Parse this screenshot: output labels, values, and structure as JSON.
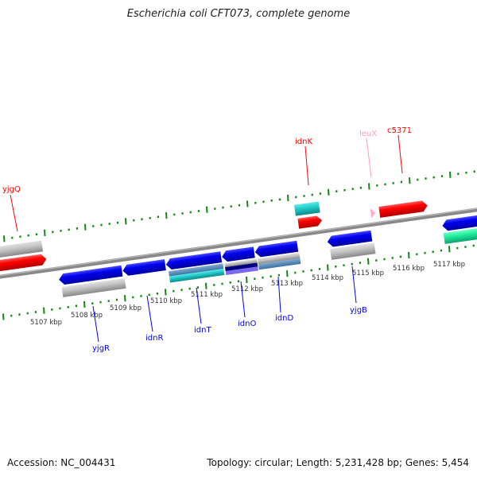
{
  "title": "Escherichia coli CFT073, complete genome",
  "footer": {
    "accession": "Accession: NC_004431",
    "summary": "Topology: circular; Length: 5,231,428 bp; Genes: 5,454"
  },
  "scale_labels": [
    "5107 kbp",
    "5108 kbp",
    "5109 kbp",
    "5110 kbp",
    "5111 kbp",
    "5112 kbp",
    "5113 kbp",
    "5114 kbp",
    "5115 kbp",
    "5116 kbp",
    "5117 kbp"
  ],
  "gene_labels": {
    "yjgQ": "yjgQ",
    "idnK": "idnK",
    "leuX": "leuX",
    "c5371": "c5371",
    "yjgR": "yjgR",
    "idnR": "idnR",
    "idnT": "idnT",
    "idnO": "idnO",
    "idnD": "idnD",
    "yjgB": "yjgB"
  },
  "colors": {
    "forward_label": "#ff0000",
    "reverse_label": "#0000ff",
    "trna_label": "#ff99cc",
    "cds_forward": "#ff0000",
    "cds_reverse": "#0000ee",
    "ticks": "#118811",
    "backbone": "#888888"
  }
}
